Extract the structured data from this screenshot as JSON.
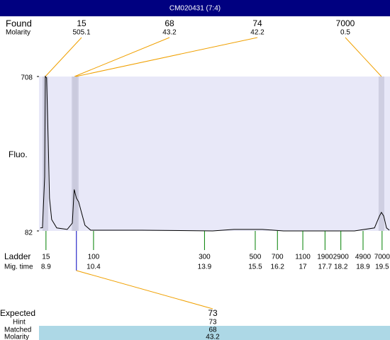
{
  "chart_data": {
    "type": "line",
    "title": "CM020431 (7:4)",
    "y_label": "Fluo.",
    "ylim": [
      82,
      708
    ],
    "yticks": [
      82,
      708
    ],
    "xlim": [
      8.68,
      19.75
    ],
    "color": "#000000",
    "x": [
      8.72,
      8.79,
      8.86,
      8.88,
      8.92,
      8.97,
      9.01,
      9.08,
      9.24,
      9.57,
      9.73,
      9.79,
      9.86,
      9.93,
      10.02,
      10.13,
      10.31,
      11.92,
      14.16,
      14.83,
      15.72,
      16.39,
      18.63,
      19.26,
      19.42,
      19.48,
      19.55,
      19.64,
      19.73
    ],
    "values": [
      94,
      95,
      302,
      708,
      702,
      447,
      215,
      128,
      94,
      88,
      114,
      250,
      215,
      200,
      157,
      105,
      85,
      85,
      82,
      88,
      88,
      82,
      82,
      94,
      143,
      157,
      143,
      94,
      85
    ],
    "found": {
      "label": "Found",
      "molarity_label": "Molarity",
      "peaks": [
        {
          "size": 15,
          "molarity": 505.1,
          "migration_time": 8.88
        },
        {
          "size": 68,
          "molarity": 43.2,
          "migration_time": 9.8
        },
        {
          "size": 74,
          "molarity": 42.2,
          "migration_time": 9.84
        },
        {
          "size": 7000,
          "molarity": 0.5,
          "migration_time": 19.48
        }
      ]
    },
    "ladder": {
      "label": "Ladder",
      "time_label": "Mig. time",
      "sizes": [
        15,
        100,
        300,
        500,
        700,
        1100,
        1900,
        2900,
        4900,
        7000
      ],
      "migration_times": [
        8.9,
        10.4,
        13.9,
        15.5,
        16.2,
        17,
        17.7,
        18.2,
        18.9,
        19.5
      ]
    },
    "expected": {
      "label": "Expected",
      "value": 73,
      "migration_time": 9.86,
      "hint_label": "Hint",
      "hint": 73,
      "matched_label": "Matched",
      "matched": 68,
      "molarity_label": "Molarity",
      "molarity": 43.2
    }
  }
}
